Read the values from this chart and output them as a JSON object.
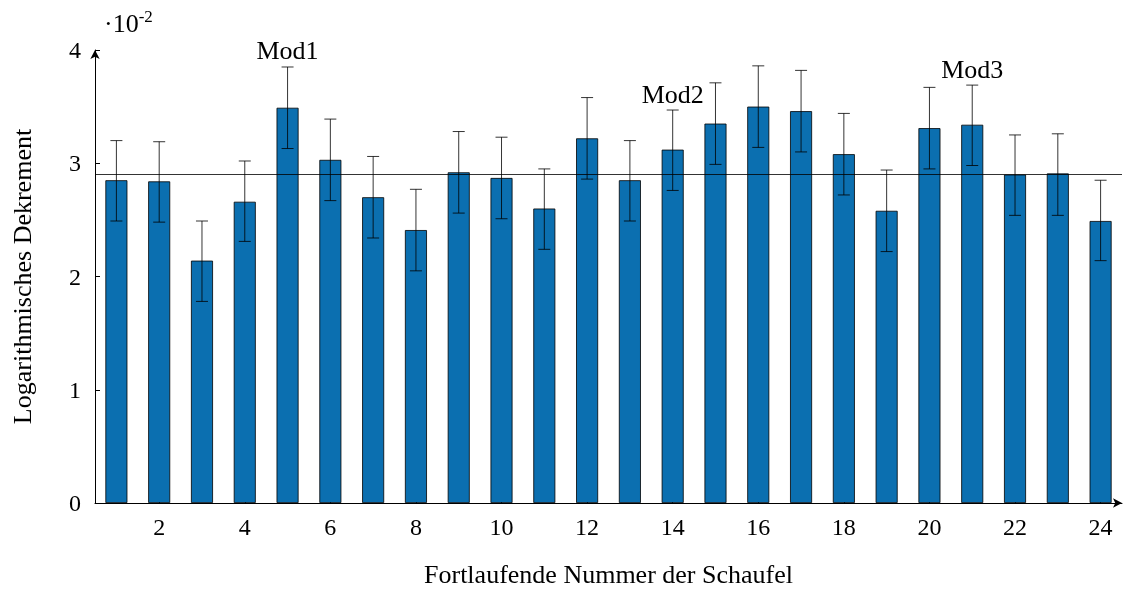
{
  "chart_data": {
    "type": "bar",
    "xlabel": "Fortlaufende Nummer der Schaufel",
    "ylabel": "Logarithmisches Dekrement",
    "x": [
      1,
      2,
      3,
      4,
      5,
      6,
      7,
      8,
      9,
      10,
      11,
      12,
      13,
      14,
      15,
      16,
      17,
      18,
      19,
      20,
      21,
      22,
      23,
      24
    ],
    "values": [
      2.85,
      2.84,
      2.14,
      2.66,
      3.49,
      3.03,
      2.7,
      2.41,
      2.92,
      2.87,
      2.6,
      3.22,
      2.85,
      3.12,
      3.35,
      3.5,
      3.46,
      3.08,
      2.58,
      3.31,
      3.34,
      2.9,
      2.91,
      2.49
    ],
    "errors": [
      [
        2.49,
        3.2
      ],
      [
        2.48,
        3.19
      ],
      [
        1.78,
        2.49
      ],
      [
        2.31,
        3.02
      ],
      [
        3.13,
        3.85
      ],
      [
        2.67,
        3.39
      ],
      [
        2.34,
        3.06
      ],
      [
        2.05,
        2.77
      ],
      [
        2.56,
        3.28
      ],
      [
        2.51,
        3.23
      ],
      [
        2.24,
        2.95
      ],
      [
        2.86,
        3.58
      ],
      [
        2.49,
        3.2
      ],
      [
        2.76,
        3.47
      ],
      [
        2.99,
        3.71
      ],
      [
        3.14,
        3.86
      ],
      [
        3.1,
        3.82
      ],
      [
        2.72,
        3.44
      ],
      [
        2.22,
        2.94
      ],
      [
        2.95,
        3.67
      ],
      [
        2.98,
        3.69
      ],
      [
        2.54,
        3.25
      ],
      [
        2.54,
        3.26
      ],
      [
        2.14,
        2.85
      ]
    ],
    "color": "#0b6fb0",
    "xlim": [
      0.5,
      24.5
    ],
    "xticks": [
      2,
      4,
      6,
      8,
      10,
      12,
      14,
      16,
      18,
      20,
      22,
      24
    ],
    "ylim": [
      0,
      4
    ],
    "yticks": [
      0,
      1,
      2,
      3,
      4
    ],
    "ref_lines": [
      {
        "axis": "y",
        "value": 2.9,
        "color": "#000000"
      }
    ],
    "annotations": [
      "·10$^{-2}$",
      {
        "text": "Mod1",
        "x": 5,
        "y": 3.85
      },
      {
        "text": "Mod2",
        "x": 14,
        "y": 3.47
      },
      {
        "text": "Mod3",
        "x": 21,
        "y": 3.69
      }
    ],
    "grid": false
  }
}
